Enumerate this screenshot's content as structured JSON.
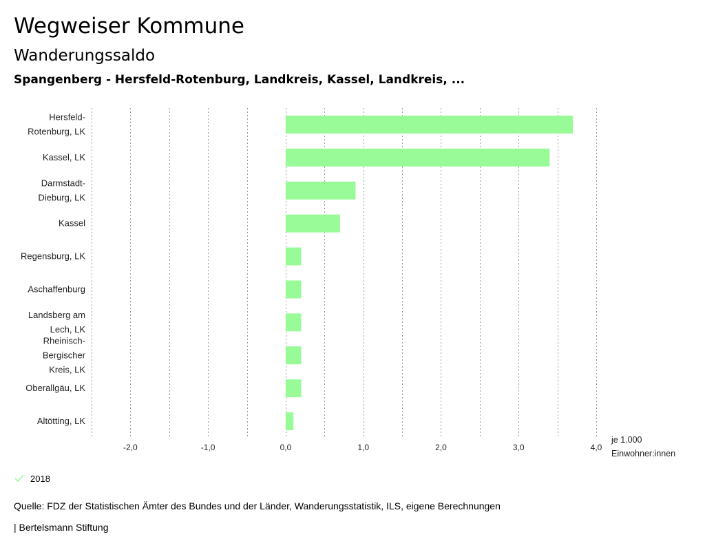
{
  "header": {
    "title": "Wegweiser Kommune",
    "subtitle": "Wanderungssaldo",
    "region": "Spangenberg - Hersfeld-Rotenburg, Landkreis, Kassel, Landkreis, ..."
  },
  "chart_data": {
    "type": "bar",
    "orientation": "horizontal",
    "categories": [
      [
        "Hersfeld-",
        "Rotenburg, LK"
      ],
      [
        "Kassel, LK"
      ],
      [
        "Darmstadt-",
        "Dieburg, LK"
      ],
      [
        "Kassel"
      ],
      [
        "Regensburg, LK"
      ],
      [
        "Aschaffenburg"
      ],
      [
        "Landsberg am",
        "Lech, LK"
      ],
      [
        "Rheinisch-",
        "Bergischer",
        "Kreis, LK"
      ],
      [
        "Oberallgäu, LK"
      ],
      [
        "Altötting, LK"
      ]
    ],
    "series": [
      {
        "name": "2018",
        "color": "#98fb98",
        "values": [
          3.7,
          3.4,
          0.9,
          0.7,
          0.2,
          0.2,
          0.2,
          0.2,
          0.2,
          0.1
        ]
      }
    ],
    "xlim": [
      -2.5,
      4.0
    ],
    "ticks": [
      -2.0,
      -1.0,
      0.0,
      1.0,
      2.0,
      3.0,
      4.0
    ],
    "tick_labels": [
      "-2,0",
      "-1,0",
      "0,0",
      "1,0",
      "2,0",
      "3,0",
      "4,0"
    ],
    "unit_label": [
      "je 1.000",
      "Einwohner:innen"
    ],
    "grid": true,
    "legend": "bottom-left"
  },
  "legend": {
    "label": "2018",
    "color": "#98fb98"
  },
  "footer": {
    "source": "Quelle: FDZ der Statistischen Ämter des Bundes und der Länder, Wanderungsstatistik, ILS, eigene Berechnungen",
    "brand": "| Bertelsmann Stiftung"
  }
}
